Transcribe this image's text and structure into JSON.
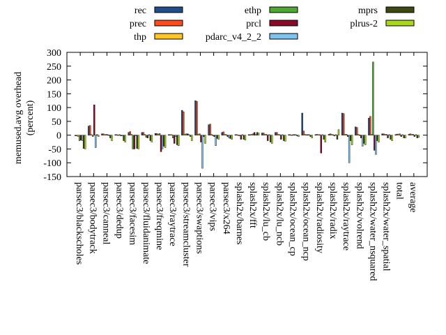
{
  "chart_data": {
    "type": "bar",
    "ylabel_lines": [
      "memused.avg overhead",
      "(percent)"
    ],
    "ylim": [
      -150,
      300
    ],
    "yticks": [
      -150,
      -100,
      -50,
      0,
      50,
      100,
      150,
      200,
      250,
      300
    ],
    "grid": false,
    "legend_position": "top",
    "categories": [
      "parsec3/blackscholes",
      "parsec3/bodytrack",
      "parsec3/canneal",
      "parsec3/dedup",
      "parsec3/facesim",
      "parsec3/fluidanimate",
      "parsec3/freqmine",
      "parsec3/raytrace",
      "parsec3/streamcluster",
      "parsec3/swaptions",
      "parsec3/vips",
      "parsec3/x264",
      "splash2x/barnes",
      "splash2x/fft",
      "splash2x/lu_cb",
      "splash2x/lu_ncb",
      "splash2x/ocean_cp",
      "splash2x/ocean_ncp",
      "splash2x/radiosity",
      "splash2x/radix",
      "splash2x/raytrace",
      "splash2x/volrend",
      "splash2x/water_nsquared",
      "splash2x/water_spatial",
      "total",
      "average"
    ],
    "series": [
      {
        "name": "rec",
        "color": "#1f4e8c",
        "values": [
          -2,
          33,
          5,
          2,
          10,
          10,
          6,
          2,
          90,
          125,
          38,
          10,
          2,
          2,
          8,
          10,
          2,
          80,
          2,
          3,
          80,
          30,
          62,
          5,
          2,
          3
        ]
      },
      {
        "name": "prec",
        "color": "#ff4a1c",
        "values": [
          -3,
          35,
          5,
          2,
          13,
          10,
          6,
          2,
          85,
          122,
          40,
          12,
          2,
          2,
          8,
          10,
          2,
          15,
          3,
          5,
          78,
          28,
          68,
          5,
          4,
          5
        ]
      },
      {
        "name": "thp",
        "color": "#ffc425",
        "values": [
          -5,
          2,
          2,
          1,
          3,
          3,
          4,
          2,
          4,
          4,
          3,
          3,
          1,
          3,
          3,
          3,
          1,
          3,
          2,
          3,
          3,
          3,
          3,
          3,
          4,
          3
        ]
      },
      {
        "name": "ethp",
        "color": "#4fa832",
        "values": [
          -20,
          -5,
          3,
          2,
          -50,
          -8,
          6,
          -10,
          5,
          5,
          -2,
          2,
          -2,
          5,
          3,
          2,
          2,
          2,
          2,
          2,
          3,
          1,
          265,
          3,
          5,
          3
        ]
      },
      {
        "name": "prcl",
        "color": "#8b0a2a",
        "values": [
          -18,
          110,
          2,
          -2,
          -50,
          -10,
          -60,
          -30,
          5,
          -25,
          -5,
          -5,
          -15,
          10,
          -20,
          -15,
          2,
          2,
          -65,
          -3,
          -5,
          -10,
          -55,
          -10,
          -5,
          -5
        ]
      },
      {
        "name": "pdarc_v4_2_2",
        "color": "#7cc3ee",
        "values": [
          -20,
          -45,
          1,
          -3,
          1,
          2,
          -50,
          -5,
          2,
          -120,
          -38,
          -10,
          2,
          2,
          2,
          2,
          2,
          2,
          2,
          2,
          -100,
          -40,
          -70,
          2,
          2,
          2
        ]
      },
      {
        "name": "mprs",
        "color": "#3b4a10",
        "values": [
          -48,
          2,
          -10,
          -20,
          -48,
          -20,
          -40,
          -35,
          -5,
          -5,
          -12,
          -12,
          -15,
          10,
          -25,
          -20,
          -3,
          -5,
          -15,
          -15,
          -20,
          -30,
          -20,
          -15,
          -10,
          -10
        ]
      },
      {
        "name": "plrus-2",
        "color": "#a8d81c",
        "values": [
          -50,
          -5,
          -20,
          -25,
          -50,
          -25,
          -45,
          -38,
          -20,
          -30,
          -15,
          -15,
          -18,
          8,
          -30,
          -22,
          -5,
          -10,
          -25,
          20,
          -35,
          -35,
          -25,
          -20,
          -10,
          -8
        ]
      }
    ]
  }
}
